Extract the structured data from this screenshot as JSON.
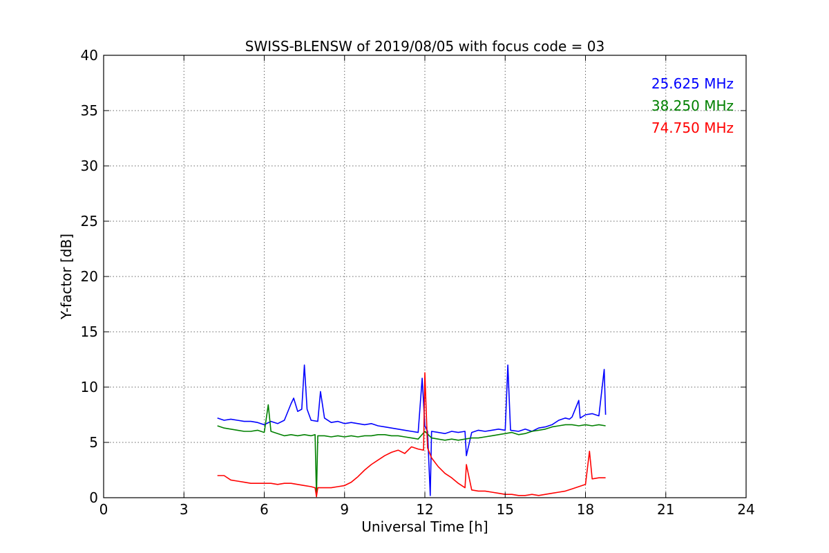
{
  "chart_data": {
    "type": "line",
    "title": "SWISS-BLENSW of 2019/08/05 with focus code = 03",
    "xlabel": "Universal Time [h]",
    "ylabel": "Y-factor [dB]",
    "xlim": [
      0,
      24
    ],
    "ylim": [
      0,
      40
    ],
    "xticks": [
      0,
      3,
      6,
      9,
      12,
      15,
      18,
      21,
      24
    ],
    "yticks": [
      0,
      5,
      10,
      15,
      20,
      25,
      30,
      35,
      40
    ],
    "grid": true,
    "legend_position": "top-right",
    "series": [
      {
        "name": "25.625 MHz",
        "color": "#0000ff",
        "x": [
          4.25,
          4.5,
          4.75,
          5.0,
          5.25,
          5.5,
          5.75,
          6.0,
          6.25,
          6.5,
          6.75,
          7.0,
          7.1,
          7.25,
          7.4,
          7.5,
          7.6,
          7.75,
          8.0,
          8.1,
          8.25,
          8.5,
          8.75,
          9.0,
          9.25,
          9.5,
          9.75,
          10.0,
          10.25,
          10.5,
          10.75,
          11.0,
          11.25,
          11.5,
          11.75,
          11.9,
          12.0,
          12.1,
          12.2,
          12.25,
          12.5,
          12.75,
          13.0,
          13.25,
          13.5,
          13.55,
          13.75,
          14.0,
          14.25,
          14.5,
          14.75,
          15.0,
          15.1,
          15.2,
          15.5,
          15.75,
          16.0,
          16.25,
          16.5,
          16.75,
          17.0,
          17.25,
          17.4,
          17.5,
          17.75,
          17.8,
          18.0,
          18.25,
          18.5,
          18.7,
          18.75
        ],
        "y": [
          7.2,
          7.0,
          7.1,
          7.0,
          6.9,
          6.9,
          6.8,
          6.6,
          6.9,
          6.7,
          7.0,
          8.5,
          9.0,
          7.8,
          8.0,
          12.0,
          8.0,
          7.0,
          6.9,
          9.6,
          7.2,
          6.8,
          6.9,
          6.7,
          6.8,
          6.7,
          6.6,
          6.7,
          6.5,
          6.4,
          6.3,
          6.2,
          6.1,
          6.0,
          5.9,
          10.8,
          6.5,
          6.0,
          0.2,
          6.0,
          5.9,
          5.8,
          6.0,
          5.9,
          6.0,
          3.8,
          5.9,
          6.1,
          6.0,
          6.1,
          6.2,
          6.1,
          12.0,
          6.1,
          6.0,
          6.2,
          6.0,
          6.3,
          6.4,
          6.6,
          7.0,
          7.2,
          7.1,
          7.3,
          8.8,
          7.2,
          7.5,
          7.6,
          7.4,
          11.6,
          7.5
        ]
      },
      {
        "name": "38.250 MHz",
        "color": "#008000",
        "x": [
          4.25,
          4.5,
          4.75,
          5.0,
          5.25,
          5.5,
          5.75,
          6.0,
          6.15,
          6.25,
          6.5,
          6.75,
          7.0,
          7.25,
          7.5,
          7.75,
          7.9,
          7.95,
          8.0,
          8.25,
          8.5,
          8.75,
          9.0,
          9.25,
          9.5,
          9.75,
          10.0,
          10.25,
          10.5,
          10.75,
          11.0,
          11.25,
          11.5,
          11.75,
          12.0,
          12.25,
          12.5,
          12.75,
          13.0,
          13.25,
          13.5,
          13.75,
          14.0,
          14.25,
          14.5,
          14.75,
          15.0,
          15.25,
          15.5,
          15.75,
          16.0,
          16.25,
          16.5,
          16.75,
          17.0,
          17.25,
          17.5,
          17.75,
          18.0,
          18.25,
          18.5,
          18.75
        ],
        "y": [
          6.5,
          6.3,
          6.2,
          6.1,
          6.0,
          6.0,
          6.1,
          5.9,
          8.4,
          6.0,
          5.8,
          5.6,
          5.7,
          5.6,
          5.7,
          5.6,
          5.7,
          0.1,
          5.6,
          5.6,
          5.5,
          5.6,
          5.5,
          5.6,
          5.5,
          5.6,
          5.6,
          5.7,
          5.7,
          5.6,
          5.6,
          5.5,
          5.4,
          5.3,
          6.0,
          5.4,
          5.3,
          5.2,
          5.3,
          5.2,
          5.3,
          5.4,
          5.4,
          5.5,
          5.6,
          5.7,
          5.8,
          5.9,
          5.7,
          5.8,
          6.0,
          6.1,
          6.2,
          6.4,
          6.5,
          6.6,
          6.6,
          6.5,
          6.6,
          6.5,
          6.6,
          6.5
        ]
      },
      {
        "name": "74.750 MHz",
        "color": "#ff0000",
        "x": [
          4.25,
          4.5,
          4.75,
          5.0,
          5.25,
          5.5,
          5.75,
          6.0,
          6.25,
          6.5,
          6.75,
          7.0,
          7.25,
          7.5,
          7.75,
          7.9,
          7.95,
          8.0,
          8.25,
          8.5,
          8.75,
          9.0,
          9.25,
          9.5,
          9.75,
          10.0,
          10.25,
          10.5,
          10.75,
          11.0,
          11.25,
          11.5,
          11.75,
          11.95,
          12.0,
          12.1,
          12.25,
          12.5,
          12.75,
          13.0,
          13.25,
          13.5,
          13.55,
          13.75,
          14.0,
          14.25,
          14.5,
          14.75,
          15.0,
          15.25,
          15.5,
          15.75,
          16.0,
          16.25,
          16.5,
          16.75,
          17.0,
          17.25,
          17.5,
          17.75,
          18.0,
          18.15,
          18.25,
          18.5,
          18.75
        ],
        "y": [
          2.0,
          2.0,
          1.6,
          1.5,
          1.4,
          1.3,
          1.3,
          1.3,
          1.3,
          1.2,
          1.3,
          1.3,
          1.2,
          1.1,
          1.0,
          0.9,
          0.1,
          0.9,
          0.9,
          0.9,
          1.0,
          1.1,
          1.4,
          1.9,
          2.5,
          3.0,
          3.4,
          3.8,
          4.1,
          4.3,
          4.0,
          4.6,
          4.4,
          4.3,
          11.3,
          4.5,
          3.6,
          2.8,
          2.2,
          1.8,
          1.3,
          0.9,
          3.0,
          0.7,
          0.6,
          0.6,
          0.5,
          0.4,
          0.3,
          0.3,
          0.2,
          0.2,
          0.3,
          0.2,
          0.3,
          0.4,
          0.5,
          0.6,
          0.8,
          1.0,
          1.2,
          4.2,
          1.7,
          1.8,
          1.8
        ]
      }
    ]
  }
}
